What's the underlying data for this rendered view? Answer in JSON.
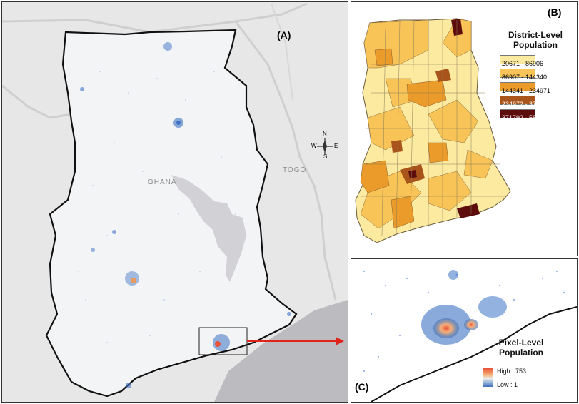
{
  "panel_a": {
    "label": "(A)",
    "country_label": "GHANA",
    "neighbor_label": "TOGO",
    "compass": {
      "n": "N",
      "s": "S",
      "e": "E",
      "w": "W"
    }
  },
  "panel_b": {
    "label": "(B)",
    "legend_title_line1": "District-Level",
    "legend_title_line2": "Population",
    "classes": [
      {
        "range": "20671 - 86906",
        "color": "#fbeaa0"
      },
      {
        "range": "86907 - 144340",
        "color": "#f8c458"
      },
      {
        "range": "144341 - 234971",
        "color": "#eb9b2a"
      },
      {
        "range": "234972 - 371791",
        "color": "#a9541a"
      },
      {
        "range": "371792 - 580866",
        "color": "#5e0d0d"
      }
    ]
  },
  "panel_c": {
    "label": "(C)",
    "legend_title_line1": "Pixel-Level",
    "legend_title_line2": "Population",
    "high_label": "High : 753",
    "low_label": "Low : 1"
  },
  "colors": {
    "map_background": "#e7e7e7",
    "country_fill": "#f3f4f6",
    "settlement_blue": "#3d72c4",
    "lake": "#d2d2d6",
    "sea": "#bcbcc0",
    "arrow": "#e0241b"
  }
}
